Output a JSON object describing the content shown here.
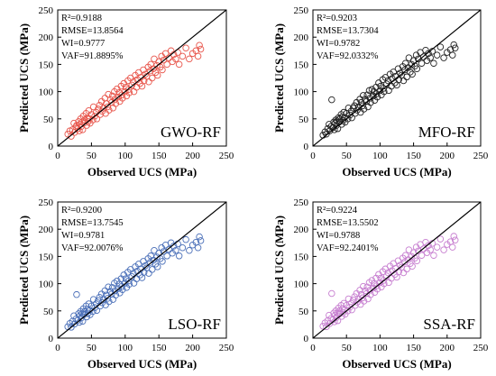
{
  "chart_data": [
    {
      "type": "scatter",
      "model_label": "GWO-RF",
      "xlabel": "Observed UCS (MPa)",
      "ylabel": "Predicted UCS (MPa)",
      "xlim": [
        0,
        250
      ],
      "ylim": [
        0,
        250
      ],
      "xticks": [
        "0",
        "50",
        "100",
        "150",
        "200",
        "250"
      ],
      "yticks": [
        "0",
        "50",
        "100",
        "150",
        "200",
        "250"
      ],
      "stats": {
        "r2": "R²=0.9188",
        "rmse": "RMSE=13.8564",
        "wi": "WI=0.9777",
        "vaf": "VAF=91.8895%"
      },
      "color": "#e8564c",
      "reference_line": "1:1",
      "x": [
        15,
        18,
        20,
        22,
        24,
        25,
        27,
        28,
        30,
        31,
        32,
        33,
        34,
        35,
        36,
        37,
        38,
        39,
        40,
        42,
        43,
        44,
        45,
        46,
        47,
        48,
        50,
        52,
        53,
        55,
        57,
        58,
        60,
        62,
        63,
        65,
        66,
        68,
        70,
        71,
        72,
        74,
        75,
        76,
        78,
        80,
        81,
        82,
        84,
        85,
        86,
        88,
        90,
        91,
        92,
        94,
        95,
        96,
        98,
        100,
        101,
        102,
        104,
        105,
        106,
        108,
        110,
        112,
        113,
        115,
        117,
        118,
        120,
        122,
        123,
        125,
        127,
        128,
        130,
        132,
        134,
        135,
        137,
        138,
        140,
        142,
        143,
        145,
        147,
        148,
        150,
        152,
        154,
        155,
        157,
        160,
        162,
        165,
        168,
        170,
        172,
        175,
        178,
        180,
        185,
        190,
        195,
        200,
        205,
        208,
        210,
        212
      ],
      "y": [
        22,
        28,
        18,
        30,
        42,
        25,
        35,
        38,
        32,
        45,
        28,
        40,
        50,
        36,
        44,
        30,
        55,
        42,
        48,
        60,
        38,
        52,
        45,
        65,
        50,
        42,
        58,
        48,
        72,
        55,
        62,
        50,
        68,
        75,
        58,
        82,
        64,
        70,
        88,
        60,
        78,
        72,
        95,
        66,
        85,
        80,
        92,
        70,
        100,
        86,
        78,
        105,
        90,
        98,
        82,
        110,
        94,
        88,
        115,
        100,
        108,
        92,
        120,
        104,
        98,
        125,
        112,
        118,
        100,
        130,
        108,
        122,
        135,
        115,
        126,
        110,
        140,
        120,
        132,
        128,
        145,
        118,
        138,
        150,
        125,
        142,
        160,
        135,
        148,
        130,
        155,
        145,
        165,
        140,
        158,
        170,
        150,
        162,
        175,
        155,
        168,
        160,
        172,
        150,
        165,
        180,
        160,
        170,
        175,
        165,
        185,
        178
      ]
    },
    {
      "type": "scatter",
      "model_label": "MFO-RF",
      "xlabel": "Observed UCS (MPa)",
      "ylabel": "Predicted UCS (MPa)",
      "xlim": [
        0,
        250
      ],
      "ylim": [
        0,
        250
      ],
      "xticks": [
        "0",
        "50",
        "100",
        "150",
        "200",
        "250"
      ],
      "yticks": [
        "0",
        "50",
        "100",
        "150",
        "200",
        "250"
      ],
      "stats": {
        "r2": "R²=0.9203",
        "rmse": "RMSE=13.7304",
        "wi": "WI=0.9782",
        "vaf": "VAF=92.0332%"
      },
      "color": "#222222",
      "reference_line": "1:1",
      "x": [
        15,
        18,
        20,
        22,
        24,
        25,
        27,
        28,
        30,
        31,
        32,
        33,
        34,
        35,
        36,
        37,
        38,
        39,
        40,
        42,
        43,
        44,
        45,
        46,
        47,
        48,
        50,
        52,
        53,
        55,
        57,
        58,
        60,
        62,
        63,
        65,
        66,
        68,
        70,
        71,
        72,
        74,
        75,
        76,
        78,
        80,
        81,
        82,
        84,
        85,
        86,
        88,
        90,
        91,
        92,
        94,
        95,
        96,
        98,
        100,
        101,
        102,
        104,
        105,
        106,
        108,
        110,
        112,
        113,
        115,
        117,
        118,
        120,
        122,
        123,
        125,
        127,
        128,
        130,
        132,
        134,
        135,
        137,
        138,
        140,
        142,
        143,
        145,
        147,
        148,
        150,
        152,
        154,
        155,
        157,
        160,
        162,
        165,
        168,
        170,
        172,
        175,
        178,
        180,
        185,
        190,
        195,
        200,
        205,
        208,
        210,
        212
      ],
      "y": [
        20,
        26,
        22,
        32,
        40,
        28,
        36,
        85,
        34,
        44,
        30,
        42,
        48,
        38,
        46,
        32,
        52,
        44,
        50,
        58,
        40,
        54,
        47,
        62,
        52,
        44,
        60,
        50,
        70,
        57,
        64,
        52,
        70,
        74,
        60,
        80,
        66,
        72,
        86,
        62,
        80,
        74,
        93,
        68,
        86,
        82,
        94,
        72,
        102,
        88,
        80,
        104,
        92,
        100,
        84,
        108,
        96,
        90,
        116,
        102,
        110,
        94,
        122,
        106,
        100,
        126,
        114,
        120,
        102,
        132,
        110,
        124,
        136,
        116,
        128,
        112,
        142,
        122,
        134,
        130,
        146,
        120,
        140,
        152,
        127,
        144,
        162,
        136,
        150,
        132,
        157,
        147,
        167,
        142,
        160,
        172,
        152,
        164,
        176,
        157,
        170,
        162,
        174,
        152,
        167,
        182,
        162,
        172,
        177,
        167,
        186,
        180
      ]
    },
    {
      "type": "scatter",
      "model_label": "LSO-RF",
      "xlabel": "Observed UCS (MPa)",
      "ylabel": "Predicted UCS (MPa)",
      "xlim": [
        0,
        250
      ],
      "ylim": [
        0,
        250
      ],
      "xticks": [
        "0",
        "50",
        "100",
        "150",
        "200",
        "250"
      ],
      "yticks": [
        "0",
        "50",
        "100",
        "150",
        "200",
        "250"
      ],
      "stats": {
        "r2": "R²=0.9200",
        "rmse": "RMSE=13.7545",
        "wi": "WI=0.9781",
        "vaf": "VAF=92.0076%"
      },
      "color": "#4a6fb8",
      "reference_line": "1:1",
      "x": [
        15,
        18,
        20,
        22,
        24,
        25,
        27,
        28,
        30,
        31,
        32,
        33,
        34,
        35,
        36,
        37,
        38,
        39,
        40,
        42,
        43,
        44,
        45,
        46,
        47,
        48,
        50,
        52,
        53,
        55,
        57,
        58,
        60,
        62,
        63,
        65,
        66,
        68,
        70,
        71,
        72,
        74,
        75,
        76,
        78,
        80,
        81,
        82,
        84,
        85,
        86,
        88,
        90,
        91,
        92,
        94,
        95,
        96,
        98,
        100,
        101,
        102,
        104,
        105,
        106,
        108,
        110,
        112,
        113,
        115,
        117,
        118,
        120,
        122,
        123,
        125,
        127,
        128,
        130,
        132,
        134,
        135,
        137,
        138,
        140,
        142,
        143,
        145,
        147,
        148,
        150,
        152,
        154,
        155,
        157,
        160,
        162,
        165,
        168,
        170,
        172,
        175,
        178,
        180,
        185,
        190,
        195,
        200,
        205,
        208,
        210,
        212
      ],
      "y": [
        21,
        27,
        20,
        31,
        41,
        26,
        35,
        80,
        33,
        45,
        29,
        41,
        49,
        37,
        45,
        31,
        54,
        43,
        49,
        59,
        39,
        53,
        46,
        63,
        51,
        43,
        59,
        49,
        71,
        56,
        63,
        51,
        69,
        75,
        59,
        81,
        65,
        71,
        87,
        61,
        79,
        73,
        94,
        67,
        86,
        81,
        93,
        71,
        101,
        87,
        79,
        105,
        91,
        99,
        83,
        109,
        95,
        89,
        116,
        101,
        109,
        93,
        121,
        105,
        99,
        126,
        113,
        119,
        101,
        131,
        109,
        123,
        136,
        116,
        127,
        111,
        141,
        121,
        133,
        129,
        146,
        119,
        139,
        151,
        126,
        143,
        161,
        136,
        149,
        131,
        156,
        146,
        166,
        141,
        159,
        171,
        151,
        163,
        175,
        156,
        169,
        161,
        173,
        151,
        166,
        181,
        161,
        171,
        176,
        166,
        186,
        179
      ]
    },
    {
      "type": "scatter",
      "model_label": "SSA-RF",
      "xlabel": "Observed UCS (MPa)",
      "ylabel": "Predicted UCS (MPa)",
      "xlim": [
        0,
        250
      ],
      "ylim": [
        0,
        250
      ],
      "xticks": [
        "0",
        "50",
        "100",
        "150",
        "200",
        "250"
      ],
      "yticks": [
        "0",
        "50",
        "100",
        "150",
        "200",
        "250"
      ],
      "stats": {
        "r2": "R²=0.9224",
        "rmse": "RMSE=13.5502",
        "wi": "WI=0.9788",
        "vaf": "VAF=92.2401%"
      },
      "color": "#c77fd0",
      "reference_line": "1:1",
      "x": [
        15,
        18,
        20,
        22,
        24,
        25,
        27,
        28,
        30,
        31,
        32,
        33,
        34,
        35,
        36,
        37,
        38,
        39,
        40,
        42,
        43,
        44,
        45,
        46,
        47,
        48,
        50,
        52,
        53,
        55,
        57,
        58,
        60,
        62,
        63,
        65,
        66,
        68,
        70,
        71,
        72,
        74,
        75,
        76,
        78,
        80,
        81,
        82,
        84,
        85,
        86,
        88,
        90,
        91,
        92,
        94,
        95,
        96,
        98,
        100,
        101,
        102,
        104,
        105,
        106,
        108,
        110,
        112,
        113,
        115,
        117,
        118,
        120,
        122,
        123,
        125,
        127,
        128,
        130,
        132,
        134,
        135,
        137,
        138,
        140,
        142,
        143,
        145,
        147,
        148,
        150,
        152,
        154,
        155,
        157,
        160,
        162,
        165,
        168,
        170,
        172,
        175,
        178,
        180,
        185,
        190,
        195,
        200,
        205,
        208,
        210,
        212
      ],
      "y": [
        22,
        28,
        21,
        32,
        42,
        27,
        36,
        82,
        34,
        46,
        30,
        42,
        50,
        38,
        46,
        32,
        55,
        44,
        50,
        60,
        40,
        54,
        47,
        64,
        52,
        44,
        60,
        50,
        72,
        57,
        64,
        52,
        70,
        76,
        60,
        82,
        66,
        72,
        88,
        62,
        80,
        74,
        95,
        68,
        87,
        82,
        94,
        72,
        102,
        88,
        80,
        106,
        92,
        100,
        84,
        110,
        96,
        90,
        117,
        102,
        110,
        94,
        122,
        106,
        100,
        127,
        114,
        120,
        102,
        132,
        110,
        124,
        137,
        117,
        128,
        112,
        142,
        122,
        134,
        130,
        147,
        120,
        140,
        152,
        127,
        144,
        162,
        137,
        150,
        132,
        157,
        147,
        167,
        142,
        160,
        172,
        152,
        164,
        176,
        157,
        170,
        162,
        174,
        152,
        167,
        182,
        162,
        172,
        177,
        167,
        187,
        180
      ]
    }
  ]
}
